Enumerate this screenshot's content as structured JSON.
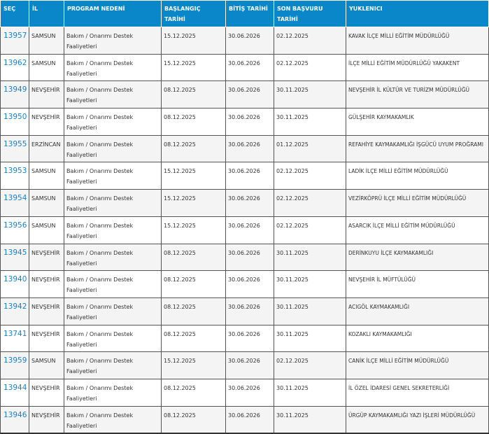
{
  "headers": {
    "sec": "SEÇ",
    "il": "İL",
    "program": "PROGRAM NEDENİ",
    "baslangic": "BAŞLANGIÇ TARİHİ",
    "bitis": "BİTİŞ TARİHİ",
    "son_basvuru": "SON BAŞVURU TARİHİ",
    "yuklenici": "YUKLENICI"
  },
  "accent_color": "#0a87c9",
  "rows": [
    {
      "id": "13957",
      "il": "SAMSUN",
      "program": "Bakım / Onarımı Destek Faaliyetleri",
      "baslangic": "15.12.2025",
      "bitis": "30.06.2026",
      "son": "02.12.2025",
      "yuklenici": "KAVAK İLÇE MİLLİ EĞİTİM MÜDÜRLÜĞÜ"
    },
    {
      "id": "13962",
      "il": "SAMSUN",
      "program": "Bakım / Onarımı Destek Faaliyetleri",
      "baslangic": "15.12.2025",
      "bitis": "30.06.2026",
      "son": "02.12.2025",
      "yuklenici": "İLÇE MİLLİ EĞİTİM MÜDÜRLÜĞÜ YAKAKENT"
    },
    {
      "id": "13949",
      "il": "NEVŞEHİR",
      "program": "Bakım / Onarımı Destek Faaliyetleri",
      "baslangic": "08.12.2025",
      "bitis": "30.06.2026",
      "son": "30.11.2025",
      "yuklenici": "NEVŞEHİR İL KÜLTÜR VE TURİZM MÜDÜRLÜĞÜ"
    },
    {
      "id": "13950",
      "il": "NEVŞEHİR",
      "program": "Bakım / Onarımı Destek Faaliyetleri",
      "baslangic": "08.12.2025",
      "bitis": "30.06.2026",
      "son": "30.11.2025",
      "yuklenici": "GÜLŞEHİR KAYMAKAMLIK"
    },
    {
      "id": "13955",
      "il": "ERZİNCAN",
      "program": "Bakım / Onarımı Destek Faaliyetleri",
      "baslangic": "08.12.2025",
      "bitis": "30.06.2026",
      "son": "01.12.2025",
      "yuklenici": "REFAHİYE KAYMAKAMLIĞI İŞGÜCÜ UYUM PROĞRAMI"
    },
    {
      "id": "13953",
      "il": "SAMSUN",
      "program": "Bakım / Onarımı Destek Faaliyetleri",
      "baslangic": "15.12.2025",
      "bitis": "30.06.2026",
      "son": "02.12.2025",
      "yuklenici": "LADİK İLÇE MİLLİ EĞİTİM MÜDÜRLÜĞÜ"
    },
    {
      "id": "13954",
      "il": "SAMSUN",
      "program": "Bakım / Onarımı Destek Faaliyetleri",
      "baslangic": "15.12.2025",
      "bitis": "30.06.2026",
      "son": "02.12.2025",
      "yuklenici": "VEZİRKÖPRÜ İLÇE MİLLİ EĞİTİM MÜDÜRLÜĞÜ"
    },
    {
      "id": "13956",
      "il": "SAMSUN",
      "program": "Bakım / Onarımı Destek Faaliyetleri",
      "baslangic": "15.12.2025",
      "bitis": "30.06.2026",
      "son": "02.12.2025",
      "yuklenici": "ASARCIK İLÇE MİLLİ EĞİTİM MÜDÜRLÜĞÜ"
    },
    {
      "id": "13945",
      "il": "NEVŞEHİR",
      "program": "Bakım / Onarımı Destek Faaliyetleri",
      "baslangic": "08.12.2025",
      "bitis": "30.06.2026",
      "son": "30.11.2025",
      "yuklenici": "DERİNKUYU İLÇE KAYMAKAMLIĞI"
    },
    {
      "id": "13940",
      "il": "NEVŞEHİR",
      "program": "Bakım / Onarımı Destek Faaliyetleri",
      "baslangic": "08.12.2025",
      "bitis": "30.06.2026",
      "son": "30.11.2025",
      "yuklenici": "NEVŞEHİR İL MÜFTÜLÜĞÜ"
    },
    {
      "id": "13942",
      "il": "NEVŞEHİR",
      "program": "Bakım / Onarımı Destek Faaliyetleri",
      "baslangic": "08.12.2025",
      "bitis": "30.06.2026",
      "son": "30.11.2025",
      "yuklenici": "ACIGÖL KAYMAKAMLIĞI"
    },
    {
      "id": "13741",
      "il": "NEVŞEHİR",
      "program": "Bakım / Onarımı Destek Faaliyetleri",
      "baslangic": "08.12.2025",
      "bitis": "30.06.2026",
      "son": "30.11.2025",
      "yuklenici": "KOZAKLI KAYMAKAMLIĞI"
    },
    {
      "id": "13959",
      "il": "SAMSUN",
      "program": "Bakım / Onarımı Destek Faaliyetleri",
      "baslangic": "15.12.2025",
      "bitis": "30.06.2026",
      "son": "02.12.2025",
      "yuklenici": "CANİK İLÇE MİLLİ EĞİTİM MÜDÜRLÜĞÜ"
    },
    {
      "id": "13944",
      "il": "NEVŞEHİR",
      "program": "Bakım / Onarımı Destek Faaliyetleri",
      "baslangic": "08.12.2025",
      "bitis": "30.06.2026",
      "son": "30.11.2025",
      "yuklenici": "İL ÖZEL İDARESİ GENEL SEKRETERLİĞİ"
    },
    {
      "id": "13946",
      "il": "NEVŞEHİR",
      "program": "Bakım / Onarımı Destek Faaliyetleri",
      "baslangic": "08.12.2025",
      "bitis": "30.06.2026",
      "son": "30.11.2025",
      "yuklenici": "ÜRGÜP KAYMAKAMLIĞI YAZI İŞLERİ MÜDÜRLÜĞÜ"
    }
  ]
}
